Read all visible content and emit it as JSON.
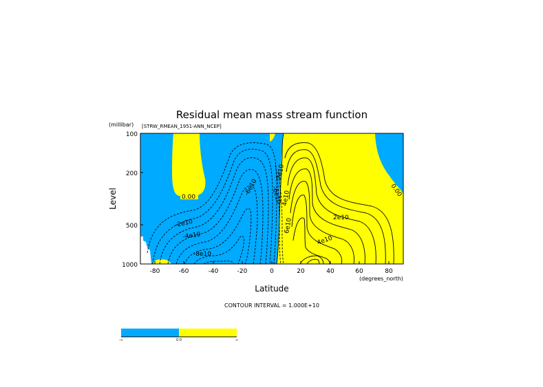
{
  "chart_data": {
    "type": "contour",
    "title": "Residual mean mass stream function",
    "dataset_label": "[STRW_RMEAN_1951-ANN_NCEP]",
    "xlabel": "Latitude",
    "xunit": "(degrees_north)",
    "ylabel": "Level",
    "yunit": "(millibar)",
    "xlim": [
      -90,
      90
    ],
    "ylim": [
      1000,
      100
    ],
    "y_scale": "log",
    "x_ticks": [
      -80,
      -60,
      -40,
      -20,
      0,
      20,
      40,
      60,
      80
    ],
    "x_tick_labels": [
      "-80",
      "-60",
      "-40",
      "-20",
      "0",
      "20",
      "40",
      "60",
      "80"
    ],
    "y_ticks": [
      100,
      200,
      500,
      1000
    ],
    "y_tick_labels": [
      "100",
      "200",
      "500",
      "1000"
    ],
    "contour_interval_text": "CONTOUR INTERVAL = 1.000E+10",
    "contour_labels": [
      "0.00",
      "0.00",
      "-2e10",
      "-4e10",
      "-6e10",
      "-8e10",
      "-6e10",
      "2e10",
      "4e10",
      "6e10",
      "2e10",
      "4e10"
    ],
    "fill_colors": {
      "negative": "#00aaff",
      "positive": "#ffff00",
      "missing": "#ffffff"
    },
    "colorbar": {
      "labels": [
        "-∞",
        "0.0",
        "∞"
      ],
      "colors": [
        "#00aaff",
        "#ffff00"
      ]
    }
  }
}
